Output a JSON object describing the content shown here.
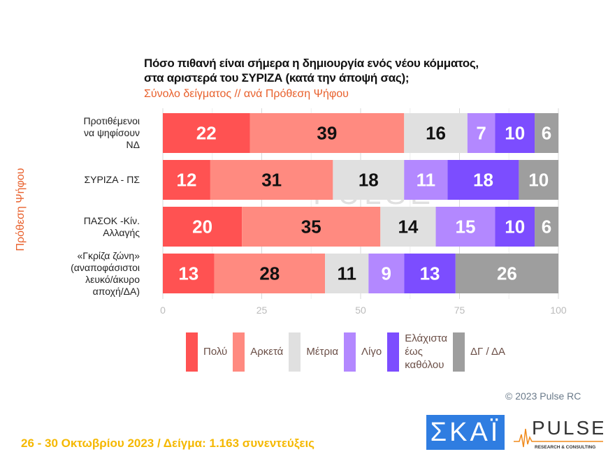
{
  "title_lines": [
    "Πόσο πιθανή είναι σήμερα η δημιουργία ενός νέου κόμματος,",
    "στα αριστερά του ΣΥΡΙΖΑ (κατά την άποψή σας);"
  ],
  "subtitle": "Σύνολο δείγματος // ανά Πρόθεση Ψήφου",
  "chart_data": {
    "type": "bar",
    "orientation": "horizontal",
    "stacked": true,
    "ylabel": "Πρόθεση Ψήφου",
    "categories": [
      "Προτιθέμενοι να ψηφίσουν ΝΔ",
      "ΣΥΡΙΖΑ - ΠΣ",
      "ΠΑΣΟΚ -Κίν. Αλλαγής",
      "«Γκρίζα ζώνη» (αναποφάσιστοι λευκό/άκυρο αποχή/ΔΑ)"
    ],
    "category_lines": [
      [
        "Προτιθέμενοι",
        "να ψηφίσουν",
        "ΝΔ"
      ],
      [
        "ΣΥΡΙΖΑ - ΠΣ"
      ],
      [
        "ΠΑΣΟΚ -Κίν.",
        "Αλλαγής"
      ],
      [
        "«Γκρίζα ζώνη»",
        "(αναποφάσιστοι",
        "λευκό/άκυρο",
        "αποχή/ΔΑ)"
      ]
    ],
    "series": [
      {
        "name": "Πολύ",
        "color": "#ff5252",
        "label_color": "#ffffff",
        "values": [
          22,
          12,
          20,
          13
        ]
      },
      {
        "name": "Αρκετά",
        "color": "#ff8a80",
        "label_color": "#111111",
        "values": [
          39,
          31,
          35,
          28
        ]
      },
      {
        "name": "Μέτρια",
        "color": "#e0e0e0",
        "label_color": "#111111",
        "values": [
          16,
          18,
          14,
          11
        ]
      },
      {
        "name": "Λίγο",
        "color": "#b388ff",
        "label_color": "#ffffff",
        "values": [
          7,
          11,
          15,
          9
        ]
      },
      {
        "name": "Ελάχιστα έως καθόλου",
        "color": "#7c4dff",
        "label_color": "#ffffff",
        "values": [
          10,
          18,
          10,
          13
        ]
      },
      {
        "name": "ΔΓ / ΔΑ",
        "color": "#9e9e9e",
        "label_color": "#ffffff",
        "values": [
          6,
          10,
          6,
          26
        ]
      }
    ],
    "legend_lines": [
      [
        "Πολύ"
      ],
      [
        "Αρκετά"
      ],
      [
        "Μέτρια"
      ],
      [
        "Λίγο"
      ],
      [
        "Ελάχιστα",
        "έως",
        "καθόλου"
      ],
      [
        "ΔΓ / ΔΑ"
      ]
    ],
    "xlim": [
      0,
      100
    ],
    "xticks": [
      "0",
      "25",
      "50",
      "75",
      "100"
    ],
    "grid": true,
    "legend_position": "bottom"
  },
  "watermark": "PULSE",
  "copyright": "© 2023 Pulse RC",
  "footer": "26 - 30 Οκτωβρίου  2023  /  Δείγμα:  1.163 συνεντεύξεις",
  "logos": {
    "skai": "ΣΚΑΪ",
    "pulse": "PULSE",
    "pulse_sub": "RESEARCH & CONSULTING"
  }
}
